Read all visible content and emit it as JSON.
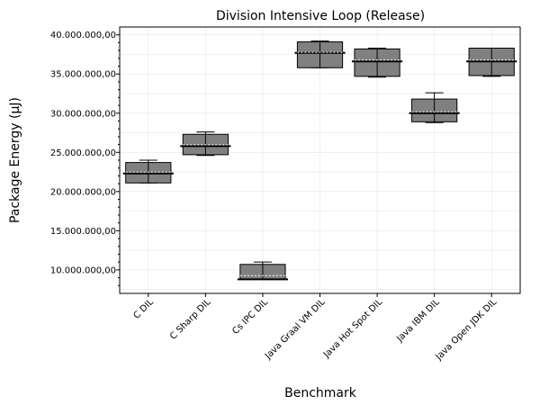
{
  "chart_data": {
    "type": "box",
    "title": "Division Intensive Loop (Release)",
    "xlabel": "Benchmark",
    "ylabel": "Package Energy (µJ)",
    "ylim": [
      7000000,
      41000000
    ],
    "y_ticks": [
      10000000,
      15000000,
      20000000,
      25000000,
      30000000,
      35000000,
      40000000
    ],
    "y_tick_labels": [
      "10.000.000,00",
      "15.000.000,00",
      "20.000.000,00",
      "25.000.000,00",
      "30.000.000,00",
      "35.000.000,00",
      "40.000.000,00"
    ],
    "grid": true,
    "box_color": "#808080",
    "categories": [
      "C DIL",
      "C Sharp DIL",
      "Cs IPC DIL",
      "Java Graal VM DIL",
      "Java Hot Spot DIL",
      "Java IBM DIL",
      "Java Open JDK DIL"
    ],
    "boxes": [
      {
        "min": 21100000,
        "q1": 21100000,
        "median": 22300000,
        "mean": 22300000,
        "q3": 23700000,
        "max": 24000000
      },
      {
        "min": 24600000,
        "q1": 24700000,
        "median": 25800000,
        "mean": 25800000,
        "q3": 27300000,
        "max": 27600000
      },
      {
        "min": 8800000,
        "q1": 8800000,
        "median": 8800000,
        "mean": 9100000,
        "q3": 10700000,
        "max": 11000000
      },
      {
        "min": 35800000,
        "q1": 35800000,
        "median": 37700000,
        "mean": 37600000,
        "q3": 39100000,
        "max": 39200000
      },
      {
        "min": 34600000,
        "q1": 34700000,
        "median": 36600000,
        "mean": 36600000,
        "q3": 38200000,
        "max": 38300000
      },
      {
        "min": 28800000,
        "q1": 28900000,
        "median": 30000000,
        "mean": 30000000,
        "q3": 31800000,
        "max": 32600000
      },
      {
        "min": 34700000,
        "q1": 34800000,
        "median": 36600000,
        "mean": 36600000,
        "q3": 38300000,
        "max": 38300000
      }
    ]
  }
}
